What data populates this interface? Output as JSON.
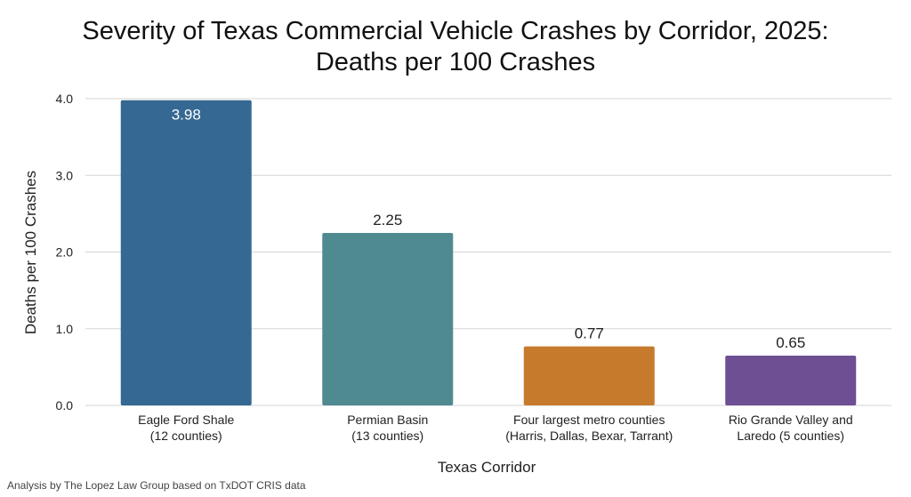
{
  "chart_data": {
    "type": "bar",
    "title": "Severity of Texas Commercial Vehicle Crashes by Corridor, 2025:",
    "subtitle": "Deaths per 100 Crashes",
    "xlabel": "Texas Corridor",
    "ylabel": "Deaths per 100 Crashes",
    "ylim": [
      0,
      4.0
    ],
    "yticks": [
      "0.0",
      "1.0",
      "2.0",
      "3.0",
      "4.0"
    ],
    "grid": true,
    "categories": [
      [
        "Eagle Ford Shale",
        "(12 counties)"
      ],
      [
        "Permian Basin",
        "(13 counties)"
      ],
      [
        "Four largest metro counties",
        "(Harris, Dallas, Bexar, Tarrant)"
      ],
      [
        "Rio Grande Valley and",
        "Laredo (5 counties)"
      ]
    ],
    "values": [
      3.98,
      2.25,
      0.77,
      0.65
    ],
    "value_labels": [
      "3.98",
      "2.25",
      "0.77",
      "0.65"
    ],
    "colors": [
      "#356892",
      "#508a91",
      "#c67a2c",
      "#6e4f93"
    ]
  },
  "footnote": "Analysis by The Lopez Law Group based on TxDOT CRIS data"
}
